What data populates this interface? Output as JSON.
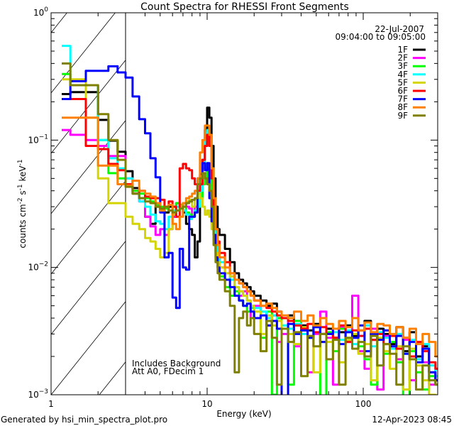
{
  "chart_data": {
    "type": "line",
    "title": "Count Spectra for RHESSI Front Segments",
    "xlabel": "Energy (keV)",
    "ylabel": "counts cm^-2 s^-1 keV^-1",
    "xscale": "log",
    "yscale": "log",
    "xlim": [
      1,
      300
    ],
    "ylim": [
      0.001,
      1
    ],
    "x_ticks": [
      {
        "value": 1,
        "label": "1"
      },
      {
        "value": 10,
        "label": "10"
      },
      {
        "value": 100,
        "label": "100"
      }
    ],
    "y_ticks": [
      {
        "value": 1,
        "base": "10",
        "exp": "0"
      },
      {
        "value": 0.1,
        "base": "10",
        "exp": "−1"
      },
      {
        "value": 0.01,
        "base": "10",
        "exp": "−2"
      },
      {
        "value": 0.001,
        "base": "10",
        "exp": "−3"
      }
    ],
    "date": "22-Jul-2007",
    "time_range": "09:04:00 to 09:05:00",
    "annotations": [
      "Includes Background",
      "Att A0, FDecim 1"
    ],
    "hatched_region_keV": [
      1,
      3
    ],
    "legend_placement": "top-right",
    "energy_edges": [
      1.17,
      1.33,
      1.67,
      2.0,
      2.33,
      2.67,
      3.0,
      3.33,
      3.67,
      4.0,
      4.33,
      4.67,
      5.0,
      5.33,
      5.67,
      6.0,
      6.33,
      6.67,
      7.0,
      7.33,
      7.67,
      8.0,
      8.33,
      8.67,
      9.0,
      9.33,
      9.67,
      10.0,
      10.33,
      10.67,
      11.0,
      11.33,
      11.67,
      12,
      13,
      14,
      15,
      16,
      17,
      18,
      19,
      20,
      22,
      24,
      26,
      28,
      30,
      33,
      36,
      40,
      44,
      48,
      53,
      58,
      64,
      70,
      77,
      85,
      93,
      102,
      112,
      123,
      135,
      148,
      163,
      180,
      198,
      218,
      240,
      264,
      290,
      300
    ],
    "series": [
      {
        "name": "1F",
        "color": "#000000",
        "values": [
          0.23,
          0.238,
          0.238,
          0.144,
          0.099,
          0.081,
          0.057,
          0.042,
          0.035,
          0.025,
          0.022,
          0.03,
          0.028,
          0.027,
          0.03,
          0.025,
          0.032,
          0.03,
          0.027,
          0.022,
          0.02,
          0.018,
          0.012,
          0.016,
          0.035,
          0.07,
          0.12,
          0.18,
          0.15,
          0.09,
          0.05,
          0.03,
          0.02,
          0.018,
          0.014,
          0.011,
          0.009,
          0.008,
          0.0075,
          0.007,
          0.0065,
          0.006,
          0.0055,
          0.005,
          0.0052,
          0.0045,
          0.004,
          0.0042,
          0.0038,
          0.0035,
          0.0032,
          0.0036,
          0.003,
          0.0033,
          0.0028,
          0.0031,
          0.0035,
          0.0029,
          0.0032,
          0.0038,
          0.0027,
          0.0033,
          0.003,
          0.0025,
          0.0034,
          0.0022,
          0.0031,
          0.002,
          0.0024,
          0.0015,
          0.0013
        ]
      },
      {
        "name": "2F",
        "color": "#ff00ff",
        "values": [
          0.12,
          0.11,
          0.1,
          0.09,
          0.075,
          0.075,
          0.05,
          0.04,
          0.033,
          0.025,
          0.021,
          0.018,
          0.02,
          0.018,
          0.02,
          0.025,
          0.028,
          0.03,
          0.032,
          0.03,
          0.029,
          0.025,
          0.03,
          0.03,
          0.035,
          0.045,
          0.055,
          0.06,
          0.05,
          0.04,
          0.02,
          0.015,
          0.012,
          0.01,
          0.008,
          0.0085,
          0.006,
          0.006,
          0.0065,
          0.0055,
          0.004,
          0.005,
          0.0045,
          0.0035,
          0.0042,
          0.0026,
          0.003,
          0.0038,
          0.0024,
          0.0032,
          0.0015,
          0.003,
          0.0045,
          0.0028,
          0.0012,
          0.0034,
          0.0026,
          0.006,
          0.0022,
          0.0016,
          0.0033,
          0.0011,
          0.0029,
          0.0024,
          0.0019,
          0.0027,
          0.0013,
          0.0026,
          0.0018,
          0.0012,
          0.0016
        ]
      },
      {
        "name": "3F",
        "color": "#00ff00",
        "values": [
          0.33,
          0.27,
          0.27,
          0.1,
          0.055,
          0.05,
          0.045,
          0.04,
          0.038,
          0.035,
          0.033,
          0.031,
          0.03,
          0.029,
          0.028,
          0.03,
          0.032,
          0.031,
          0.03,
          0.027,
          0.026,
          0.025,
          0.027,
          0.03,
          0.035,
          0.045,
          0.05,
          0.06,
          0.05,
          0.035,
          0.02,
          0.013,
          0.01,
          0.0085,
          0.007,
          0.006,
          0.0065,
          0.0055,
          0.005,
          0.0045,
          0.0048,
          0.004,
          0.0028,
          0.0045,
          0.001,
          0.004,
          0.0035,
          0.0012,
          0.0038,
          0.0032,
          0.0028,
          0.0035,
          0.0009,
          0.0031,
          0.0022,
          0.0033,
          0.0027,
          0.003,
          0.0024,
          0.0019,
          0.0012,
          0.0028,
          0.0021,
          0.0026,
          0.0018,
          0.0009,
          0.0022,
          0.0015,
          0.0011,
          0.0014,
          0.0012
        ]
      },
      {
        "name": "4F",
        "color": "#00ffff",
        "values": [
          0.55,
          0.27,
          0.27,
          0.1,
          0.072,
          0.06,
          0.05,
          0.038,
          0.033,
          0.03,
          0.026,
          0.023,
          0.022,
          0.02,
          0.025,
          0.028,
          0.03,
          0.03,
          0.028,
          0.026,
          0.024,
          0.025,
          0.028,
          0.03,
          0.04,
          0.06,
          0.1,
          0.12,
          0.1,
          0.06,
          0.03,
          0.017,
          0.013,
          0.011,
          0.009,
          0.008,
          0.007,
          0.0065,
          0.006,
          0.0055,
          0.005,
          0.0048,
          0.0045,
          0.004,
          0.0042,
          0.0038,
          0.0035,
          0.0033,
          0.0036,
          0.003,
          0.0028,
          0.0034,
          0.0026,
          0.003,
          0.0031,
          0.0027,
          0.0032,
          0.0025,
          0.0029,
          0.0035,
          0.0024,
          0.0031,
          0.0028,
          0.0023,
          0.003,
          0.0021,
          0.0027,
          0.0019,
          0.0025,
          0.0017,
          0.0014
        ]
      },
      {
        "name": "5F",
        "color": "#d4d400",
        "values": [
          0.3,
          0.3,
          0.15,
          0.05,
          0.032,
          0.032,
          0.025,
          0.022,
          0.02,
          0.017,
          0.016,
          0.014,
          0.012,
          0.013,
          0.02,
          0.026,
          0.028,
          0.03,
          0.032,
          0.033,
          0.034,
          0.03,
          0.035,
          0.038,
          0.035,
          0.03,
          0.026,
          0.028,
          0.025,
          0.02,
          0.015,
          0.013,
          0.011,
          0.01,
          0.009,
          0.0085,
          0.007,
          0.0065,
          0.006,
          0.0055,
          0.005,
          0.0045,
          0.003,
          0.0042,
          0.0035,
          0.0038,
          0.0033,
          0.003,
          0.0025,
          0.0034,
          0.0028,
          0.0015,
          0.003,
          0.0026,
          0.0033,
          0.0018,
          0.0027,
          0.003,
          0.0021,
          0.0025,
          0.0013,
          0.0028,
          0.0022,
          0.0016,
          0.0024,
          0.0011,
          0.0023,
          0.0017,
          0.0013,
          0.001,
          0.0009
        ]
      },
      {
        "name": "6F",
        "color": "#ff0000",
        "values": [
          0.21,
          0.21,
          0.09,
          0.085,
          0.065,
          0.058,
          0.045,
          0.038,
          0.04,
          0.036,
          0.035,
          0.035,
          0.034,
          0.03,
          0.033,
          0.03,
          0.025,
          0.06,
          0.065,
          0.06,
          0.058,
          0.05,
          0.045,
          0.04,
          0.045,
          0.07,
          0.09,
          0.11,
          0.09,
          0.05,
          0.03,
          0.02,
          0.016,
          0.013,
          0.011,
          0.009,
          0.008,
          0.0075,
          0.007,
          0.0065,
          0.006,
          0.0055,
          0.005,
          0.0048,
          0.0045,
          0.0042,
          0.004,
          0.0038,
          0.0035,
          0.0033,
          0.0036,
          0.0031,
          0.0034,
          0.003,
          0.0028,
          0.0035,
          0.0026,
          0.0032,
          0.0029,
          0.0033,
          0.0027,
          0.003,
          0.0025,
          0.0029,
          0.0023,
          0.0028,
          0.002,
          0.0026,
          0.0022,
          0.0018,
          0.0016
        ]
      },
      {
        "name": "7F",
        "color": "#0000ff",
        "values": [
          0.21,
          0.29,
          0.35,
          0.35,
          0.38,
          0.34,
          0.31,
          0.22,
          0.146,
          0.113,
          0.072,
          0.051,
          0.027,
          0.012,
          0.013,
          0.0058,
          0.0048,
          0.014,
          0.01,
          0.0096,
          0.025,
          0.025,
          0.027,
          0.05,
          0.054,
          0.066,
          0.058,
          0.066,
          0.035,
          0.023,
          0.018,
          0.012,
          0.01,
          0.009,
          0.008,
          0.007,
          0.006,
          0.0055,
          0.005,
          0.0052,
          0.0045,
          0.004,
          0.0042,
          0.0035,
          0.0038,
          0.0033,
          0.0009,
          0.0036,
          0.003,
          0.0032,
          0.0028,
          0.0034,
          0.0026,
          0.003,
          0.0033,
          0.0025,
          0.0031,
          0.0028,
          0.0035,
          0.0022,
          0.003,
          0.0027,
          0.0032,
          0.0024,
          0.0029,
          0.0021,
          0.0026,
          0.0018,
          0.0023,
          0.0015,
          0.0013
        ]
      },
      {
        "name": "8F",
        "color": "#ff8000",
        "values": [
          0.15,
          0.15,
          0.15,
          0.063,
          0.063,
          0.045,
          0.044,
          0.048,
          0.04,
          0.038,
          0.036,
          0.032,
          0.028,
          0.03,
          0.031,
          0.022,
          0.02,
          0.025,
          0.032,
          0.035,
          0.036,
          0.038,
          0.04,
          0.05,
          0.08,
          0.1,
          0.13,
          0.13,
          0.11,
          0.06,
          0.035,
          0.02,
          0.015,
          0.012,
          0.01,
          0.009,
          0.008,
          0.0075,
          0.007,
          0.0065,
          0.006,
          0.0055,
          0.005,
          0.0052,
          0.0048,
          0.0045,
          0.0042,
          0.004,
          0.0045,
          0.0038,
          0.0042,
          0.0035,
          0.004,
          0.0036,
          0.0033,
          0.0038,
          0.0034,
          0.004,
          0.0032,
          0.0037,
          0.0031,
          0.0036,
          0.0035,
          0.003,
          0.0034,
          0.0028,
          0.0033,
          0.0025,
          0.003,
          0.0026,
          0.002
        ]
      },
      {
        "name": "9F",
        "color": "#808000",
        "values": [
          0.4,
          0.27,
          0.27,
          0.16,
          0.1,
          0.07,
          0.043,
          0.038,
          0.035,
          0.033,
          0.032,
          0.03,
          0.029,
          0.03,
          0.028,
          0.027,
          0.028,
          0.029,
          0.03,
          0.032,
          0.033,
          0.034,
          0.035,
          0.045,
          0.05,
          0.055,
          0.05,
          0.045,
          0.04,
          0.03,
          0.015,
          0.011,
          0.009,
          0.008,
          0.0065,
          0.005,
          0.0015,
          0.004,
          0.0045,
          0.0035,
          0.004,
          0.003,
          0.0022,
          0.0038,
          0.0028,
          0.0012,
          0.0033,
          0.0026,
          0.0031,
          0.0014,
          0.0029,
          0.0024,
          0.003,
          0.0019,
          0.0027,
          0.0012,
          0.0028,
          0.0023,
          0.0026,
          0.002,
          0.0029,
          0.0017,
          0.0025,
          0.0021,
          0.0012,
          0.0024,
          0.0019,
          0.0011,
          0.0017,
          0.0013,
          0.0012
        ]
      }
    ]
  },
  "footer": {
    "generated_by": "Generated by hsi_min_spectra_plot.pro",
    "timestamp": "12-Apr-2023 08:45"
  }
}
